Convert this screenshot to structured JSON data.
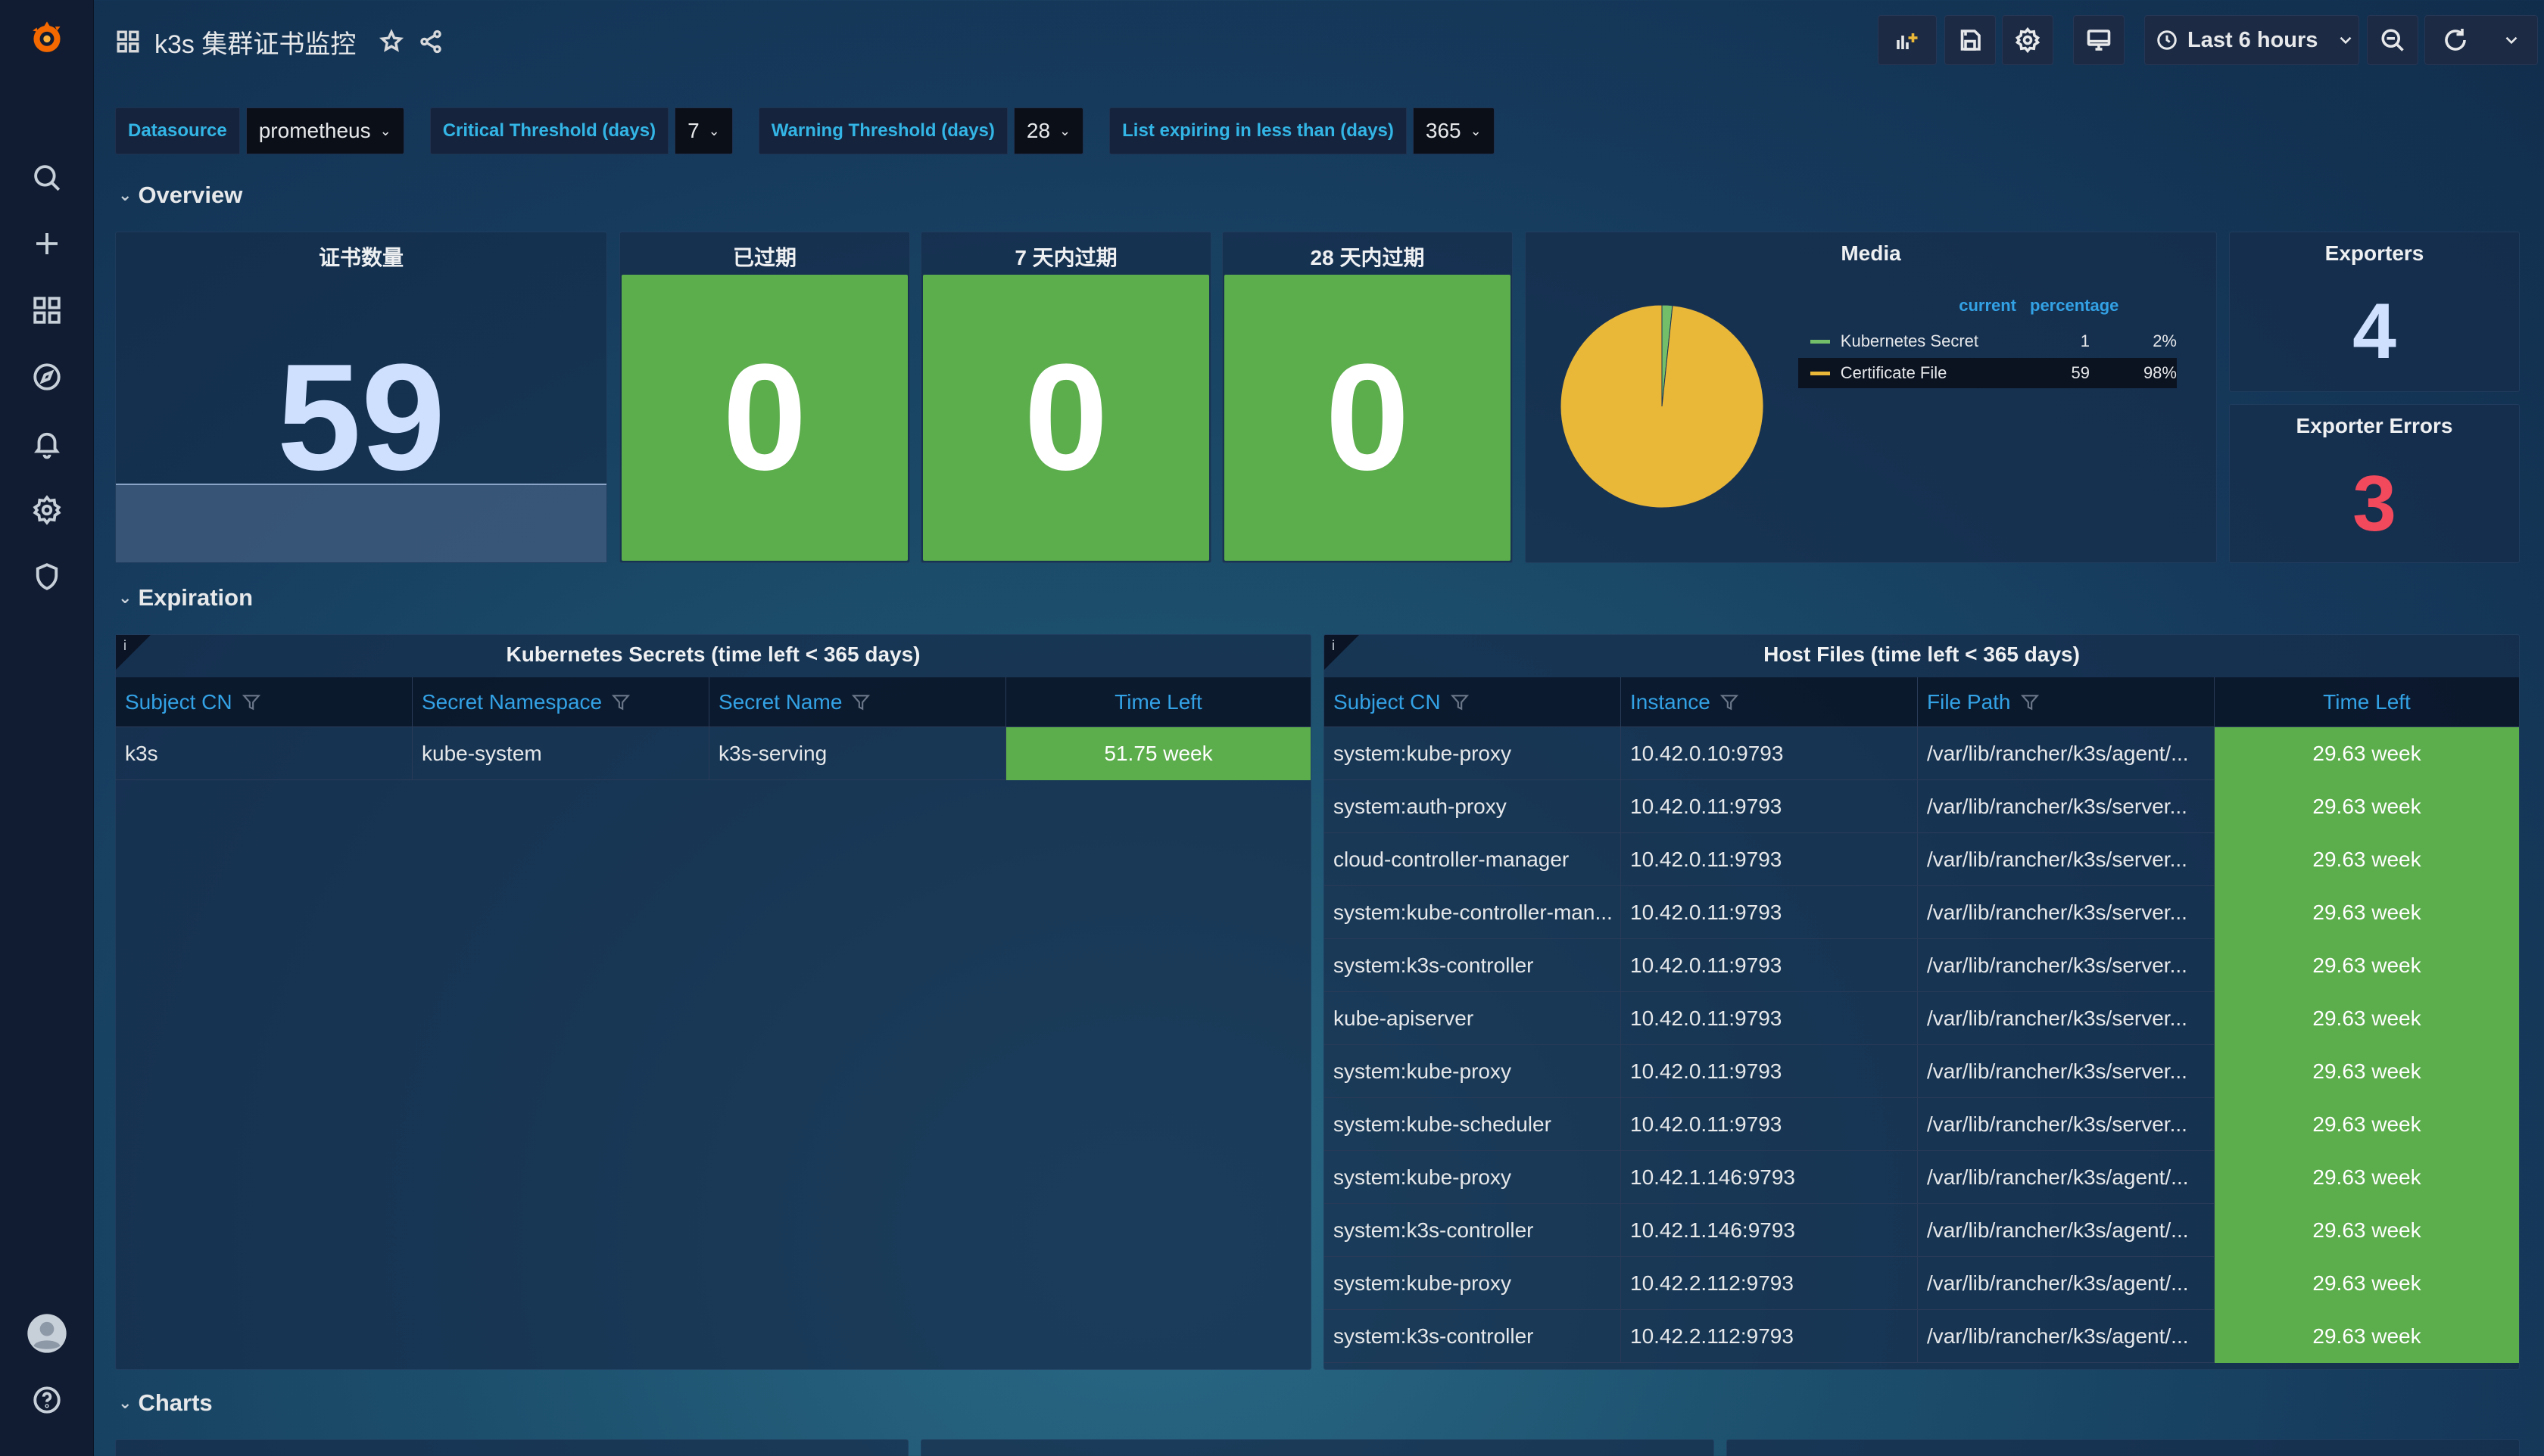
{
  "header": {
    "title": "k3s 集群证书监控",
    "time_range": "Last 6 hours"
  },
  "variables": [
    {
      "label": "Datasource",
      "value": "prometheus"
    },
    {
      "label": "Critical Threshold (days)",
      "value": "7"
    },
    {
      "label": "Warning Threshold (days)",
      "value": "28"
    },
    {
      "label": "List expiring in less than (days)",
      "value": "365"
    }
  ],
  "rows": {
    "overview": "Overview",
    "expiration": "Expiration",
    "charts": "Charts"
  },
  "stats": {
    "cert_count": {
      "title": "证书数量",
      "value": "59"
    },
    "expired": {
      "title": "已过期",
      "value": "0"
    },
    "expire_7d": {
      "title": "7 天内过期",
      "value": "0"
    },
    "expire_28d": {
      "title": "28 天内过期",
      "value": "0"
    },
    "exporters": {
      "title": "Exporters",
      "value": "4"
    },
    "exporter_errors": {
      "title": "Exporter Errors",
      "value": "3"
    }
  },
  "media": {
    "title": "Media",
    "col_current": "current",
    "col_percentage": "percentage",
    "items": [
      {
        "name": "Kubernetes Secret",
        "current": "1",
        "percentage": "2%",
        "color": "#73bf69"
      },
      {
        "name": "Certificate File",
        "current": "59",
        "percentage": "98%",
        "color": "#eab839"
      }
    ]
  },
  "chart_data": {
    "type": "pie",
    "title": "Media",
    "categories": [
      "Kubernetes Secret",
      "Certificate File"
    ],
    "values": [
      1,
      59
    ]
  },
  "k8s_table": {
    "title": "Kubernetes Secrets (time left < 365 days)",
    "columns": [
      "Subject CN",
      "Secret Namespace",
      "Secret Name",
      "Time Left"
    ],
    "rows": [
      [
        "k3s",
        "kube-system",
        "k3s-serving",
        "51.75 week"
      ]
    ]
  },
  "host_table": {
    "title": "Host Files (time left < 365 days)",
    "columns": [
      "Subject CN",
      "Instance",
      "File Path",
      "Time Left"
    ],
    "rows": [
      [
        "system:kube-proxy",
        "10.42.0.10:9793",
        "/var/lib/rancher/k3s/agent/...",
        "29.63 week"
      ],
      [
        "system:auth-proxy",
        "10.42.0.11:9793",
        "/var/lib/rancher/k3s/server...",
        "29.63 week"
      ],
      [
        "cloud-controller-manager",
        "10.42.0.11:9793",
        "/var/lib/rancher/k3s/server...",
        "29.63 week"
      ],
      [
        "system:kube-controller-man...",
        "10.42.0.11:9793",
        "/var/lib/rancher/k3s/server...",
        "29.63 week"
      ],
      [
        "system:k3s-controller",
        "10.42.0.11:9793",
        "/var/lib/rancher/k3s/server...",
        "29.63 week"
      ],
      [
        "kube-apiserver",
        "10.42.0.11:9793",
        "/var/lib/rancher/k3s/server...",
        "29.63 week"
      ],
      [
        "system:kube-proxy",
        "10.42.0.11:9793",
        "/var/lib/rancher/k3s/server...",
        "29.63 week"
      ],
      [
        "system:kube-scheduler",
        "10.42.0.11:9793",
        "/var/lib/rancher/k3s/server...",
        "29.63 week"
      ],
      [
        "system:kube-proxy",
        "10.42.1.146:9793",
        "/var/lib/rancher/k3s/agent/...",
        "29.63 week"
      ],
      [
        "system:k3s-controller",
        "10.42.1.146:9793",
        "/var/lib/rancher/k3s/agent/...",
        "29.63 week"
      ],
      [
        "system:kube-proxy",
        "10.42.2.112:9793",
        "/var/lib/rancher/k3s/agent/...",
        "29.63 week"
      ],
      [
        "system:k3s-controller",
        "10.42.2.112:9793",
        "/var/lib/rancher/k3s/agent/...",
        "29.63 week"
      ]
    ]
  },
  "colors": {
    "green": "#5cad4c",
    "red": "#f2495c",
    "blue_text": "#33a2e5",
    "stat_blue": "#cfe0ff"
  }
}
